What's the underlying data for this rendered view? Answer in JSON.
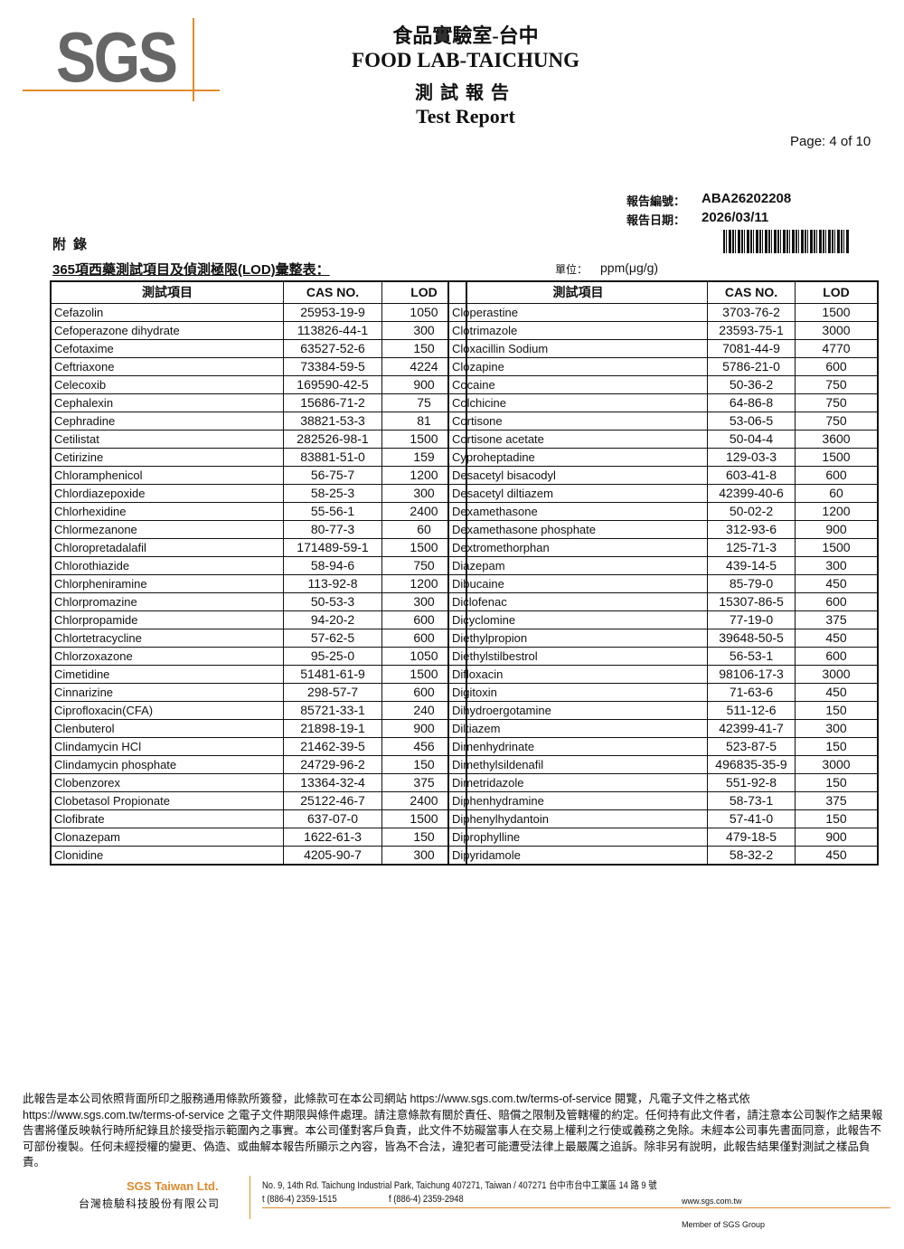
{
  "header": {
    "logo": "SGS",
    "title_zh": "食品實驗室-台中",
    "title_en": "FOOD LAB-TAICHUNG",
    "subtitle_zh": "測試報告",
    "subtitle_en": "Test Report",
    "page": "Page: 4 of 10",
    "report_no_label": "報告編號：",
    "report_no": "ABA26202208",
    "report_date_label": "報告日期：",
    "report_date": "2026/03/11"
  },
  "appendix": {
    "label": "附錄",
    "table_title": "365項西藥測試項目及偵測極限(LOD)彙整表：",
    "unit_label": "單位：",
    "unit": "ppm(μg/g)"
  },
  "table": {
    "headers": [
      "測試項目",
      "CAS NO.",
      "LOD"
    ],
    "left": [
      [
        "Cefazolin",
        "25953-19-9",
        1050
      ],
      [
        "Cefoperazone dihydrate",
        "113826-44-1",
        300
      ],
      [
        "Cefotaxime",
        "63527-52-6",
        150
      ],
      [
        "Ceftriaxone",
        "73384-59-5",
        4224
      ],
      [
        "Celecoxib",
        "169590-42-5",
        900
      ],
      [
        "Cephalexin",
        "15686-71-2",
        75
      ],
      [
        "Cephradine",
        "38821-53-3",
        81
      ],
      [
        "Cetilistat",
        "282526-98-1",
        1500
      ],
      [
        "Cetirizine",
        "83881-51-0",
        159
      ],
      [
        "Chloramphenicol",
        "56-75-7",
        1200
      ],
      [
        "Chlordiazepoxide",
        "58-25-3",
        300
      ],
      [
        "Chlorhexidine",
        "55-56-1",
        2400
      ],
      [
        "Chlormezanone",
        "80-77-3",
        60
      ],
      [
        "Chloropretadalafil",
        "171489-59-1",
        1500
      ],
      [
        "Chlorothiazide",
        "58-94-6",
        750
      ],
      [
        "Chlorpheniramine",
        "113-92-8",
        1200
      ],
      [
        "Chlorpromazine",
        "50-53-3",
        300
      ],
      [
        "Chlorpropamide",
        "94-20-2",
        600
      ],
      [
        "Chlortetracycline",
        "57-62-5",
        600
      ],
      [
        "Chlorzoxazone",
        "95-25-0",
        1050
      ],
      [
        "Cimetidine",
        "51481-61-9",
        1500
      ],
      [
        "Cinnarizine",
        "298-57-7",
        600
      ],
      [
        "Ciprofloxacin(CFA)",
        "85721-33-1",
        240
      ],
      [
        "Clenbuterol",
        "21898-19-1",
        900
      ],
      [
        "Clindamycin HCl",
        "21462-39-5",
        456
      ],
      [
        "Clindamycin phosphate",
        "24729-96-2",
        150
      ],
      [
        "Clobenzorex",
        "13364-32-4",
        375
      ],
      [
        "Clobetasol Propionate",
        "25122-46-7",
        2400
      ],
      [
        "Clofibrate",
        "637-07-0",
        1500
      ],
      [
        "Clonazepam",
        "1622-61-3",
        150
      ],
      [
        "Clonidine",
        "4205-90-7",
        300
      ]
    ],
    "right": [
      [
        "Cloperastine",
        "3703-76-2",
        1500
      ],
      [
        "Clotrimazole",
        "23593-75-1",
        3000
      ],
      [
        "Cloxacillin Sodium",
        "7081-44-9",
        4770
      ],
      [
        "Clozapine",
        "5786-21-0",
        600
      ],
      [
        "Cocaine",
        "50-36-2",
        750
      ],
      [
        "Colchicine",
        "64-86-8",
        750
      ],
      [
        "Cortisone",
        "53-06-5",
        750
      ],
      [
        "Cortisone acetate",
        "50-04-4",
        3600
      ],
      [
        "Cyproheptadine",
        "129-03-3",
        1500
      ],
      [
        "Desacetyl bisacodyl",
        "603-41-8",
        600
      ],
      [
        "Desacetyl diltiazem",
        "42399-40-6",
        60
      ],
      [
        "Dexamethasone",
        "50-02-2",
        1200
      ],
      [
        "Dexamethasone phosphate",
        "312-93-6",
        900
      ],
      [
        "Dextromethorphan",
        "125-71-3",
        1500
      ],
      [
        "Diazepam",
        "439-14-5",
        300
      ],
      [
        "Dibucaine",
        "85-79-0",
        450
      ],
      [
        "Diclofenac",
        "15307-86-5",
        600
      ],
      [
        "Dicyclomine",
        "77-19-0",
        375
      ],
      [
        "Diethylpropion",
        "39648-50-5",
        450
      ],
      [
        "Diethylstilbestrol",
        "56-53-1",
        600
      ],
      [
        "Difloxacin",
        "98106-17-3",
        3000
      ],
      [
        "Digitoxin",
        "71-63-6",
        450
      ],
      [
        "Dihydroergotamine",
        "511-12-6",
        150
      ],
      [
        "Diltiazem",
        "42399-41-7",
        300
      ],
      [
        "Dimenhydrinate",
        "523-87-5",
        150
      ],
      [
        "Dimethylsildenafil",
        "496835-35-9",
        3000
      ],
      [
        "Dimetridazole",
        "551-92-8",
        150
      ],
      [
        "Diphenhydramine",
        "58-73-1",
        375
      ],
      [
        "Diphenylhydantoin",
        "57-41-0",
        150
      ],
      [
        "Diprophylline",
        "479-18-5",
        900
      ],
      [
        "Dipyridamole",
        "58-32-2",
        450
      ]
    ]
  },
  "footer": {
    "disclaimer": "此報告是本公司依照背面所印之服務通用條款所簽發，此條款可在本公司網站 https://www.sgs.com.tw/terms-of-service 閱覽，凡電子文件之格式依 https://www.sgs.com.tw/terms-of-service 之電子文件期限與條件處理。請注意條款有關於責任、賠償之限制及管轄權的約定。任何持有此文件者，請注意本公司製作之結果報告書將僅反映執行時所紀錄且於接受指示範圍內之事實。本公司僅對客戶負責，此文件不妨礙當事人在交易上權利之行使或義務之免除。未經本公司事先書面同意，此報告不可部份複製。任何未經授權的變更、偽造、或曲解本報告所顯示之內容，皆為不合法，違犯者可能遭受法律上最嚴厲之追訴。除非另有說明，此報告結果僅對測試之樣品負責。",
    "company_en": "SGS Taiwan Ltd.",
    "company_zh": "台灣檢驗科技股份有限公司",
    "address": "No. 9, 14th Rd. Taichung Industrial Park, Taichung 407271, Taiwan / 407271 台中市台中工業區 14 路 9 號",
    "phone": "t (886-4) 2359-1515",
    "fax": "f (886-4) 2359-2948",
    "website": "www.sgs.com.tw",
    "member": "Member of SGS Group"
  }
}
